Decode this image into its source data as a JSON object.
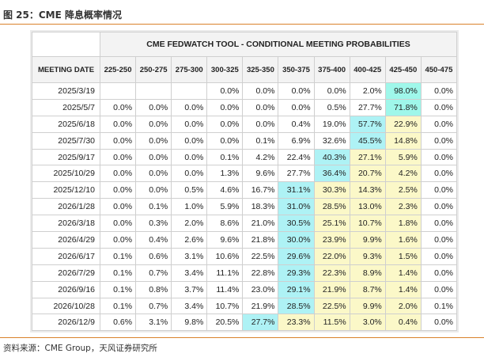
{
  "figure": {
    "title": "图 25：CME 降息概率情况",
    "source": "资料来源：CME Group，天风证券研究所"
  },
  "table": {
    "banner": "CME FEDWATCH TOOL - CONDITIONAL MEETING PROBABILITIES",
    "headers": [
      "MEETING DATE",
      "225-250",
      "250-275",
      "275-300",
      "300-325",
      "325-350",
      "350-375",
      "375-400",
      "400-425",
      "425-450",
      "450-475"
    ],
    "rows": [
      {
        "date": "2025/3/19",
        "values": [
          "",
          "",
          "",
          "0.0%",
          "0.0%",
          "0.0%",
          "0.0%",
          "2.0%",
          "98.0%",
          "0.0%"
        ],
        "hl": {
          "8": "cur"
        }
      },
      {
        "date": "2025/5/7",
        "values": [
          "0.0%",
          "0.0%",
          "0.0%",
          "0.0%",
          "0.0%",
          "0.0%",
          "0.5%",
          "27.7%",
          "71.8%",
          "0.0%"
        ],
        "hl": {
          "8": "cur"
        }
      },
      {
        "date": "2025/6/18",
        "values": [
          "0.0%",
          "0.0%",
          "0.0%",
          "0.0%",
          "0.0%",
          "0.4%",
          "19.0%",
          "57.7%",
          "22.9%",
          "0.0%"
        ],
        "hl": {
          "7": "max",
          "8": "yel"
        }
      },
      {
        "date": "2025/7/30",
        "values": [
          "0.0%",
          "0.0%",
          "0.0%",
          "0.0%",
          "0.1%",
          "6.9%",
          "32.6%",
          "45.5%",
          "14.8%",
          "0.0%"
        ],
        "hl": {
          "7": "max",
          "8": "yel"
        }
      },
      {
        "date": "2025/9/17",
        "values": [
          "0.0%",
          "0.0%",
          "0.0%",
          "0.1%",
          "4.2%",
          "22.4%",
          "40.3%",
          "27.1%",
          "5.9%",
          "0.0%"
        ],
        "hl": {
          "6": "max",
          "7": "yel",
          "8": "yel"
        }
      },
      {
        "date": "2025/10/29",
        "values": [
          "0.0%",
          "0.0%",
          "0.0%",
          "1.3%",
          "9.6%",
          "27.7%",
          "36.4%",
          "20.7%",
          "4.2%",
          "0.0%"
        ],
        "hl": {
          "6": "max",
          "7": "yel",
          "8": "yel"
        }
      },
      {
        "date": "2025/12/10",
        "values": [
          "0.0%",
          "0.0%",
          "0.5%",
          "4.6%",
          "16.7%",
          "31.1%",
          "30.3%",
          "14.3%",
          "2.5%",
          "0.0%"
        ],
        "hl": {
          "5": "max",
          "6": "yel",
          "7": "yel",
          "8": "yel"
        }
      },
      {
        "date": "2026/1/28",
        "values": [
          "0.0%",
          "0.1%",
          "1.0%",
          "5.9%",
          "18.3%",
          "31.0%",
          "28.5%",
          "13.0%",
          "2.3%",
          "0.0%"
        ],
        "hl": {
          "5": "max",
          "6": "yel",
          "7": "yel",
          "8": "yel"
        }
      },
      {
        "date": "2026/3/18",
        "values": [
          "0.0%",
          "0.3%",
          "2.0%",
          "8.6%",
          "21.0%",
          "30.5%",
          "25.1%",
          "10.7%",
          "1.8%",
          "0.0%"
        ],
        "hl": {
          "5": "max",
          "6": "yel",
          "7": "yel",
          "8": "yel"
        }
      },
      {
        "date": "2026/4/29",
        "values": [
          "0.0%",
          "0.4%",
          "2.6%",
          "9.6%",
          "21.8%",
          "30.0%",
          "23.9%",
          "9.9%",
          "1.6%",
          "0.0%"
        ],
        "hl": {
          "5": "max",
          "6": "yel",
          "7": "yel",
          "8": "yel"
        }
      },
      {
        "date": "2026/6/17",
        "values": [
          "0.1%",
          "0.6%",
          "3.1%",
          "10.6%",
          "22.5%",
          "29.6%",
          "22.0%",
          "9.3%",
          "1.5%",
          "0.0%"
        ],
        "hl": {
          "5": "max",
          "6": "yel",
          "7": "yel",
          "8": "yel"
        }
      },
      {
        "date": "2026/7/29",
        "values": [
          "0.1%",
          "0.7%",
          "3.4%",
          "11.1%",
          "22.8%",
          "29.3%",
          "22.3%",
          "8.9%",
          "1.4%",
          "0.0%"
        ],
        "hl": {
          "5": "max",
          "6": "yel",
          "7": "yel",
          "8": "yel"
        }
      },
      {
        "date": "2026/9/16",
        "values": [
          "0.1%",
          "0.8%",
          "3.7%",
          "11.4%",
          "23.0%",
          "29.1%",
          "21.9%",
          "8.7%",
          "1.4%",
          "0.0%"
        ],
        "hl": {
          "5": "max",
          "6": "yel",
          "7": "yel",
          "8": "yel"
        }
      },
      {
        "date": "2026/10/28",
        "values": [
          "0.1%",
          "0.7%",
          "3.4%",
          "10.7%",
          "21.9%",
          "28.5%",
          "22.5%",
          "9.9%",
          "2.0%",
          "0.1%"
        ],
        "hl": {
          "5": "max",
          "6": "yel",
          "7": "yel",
          "8": "yel"
        }
      },
      {
        "date": "2026/12/9",
        "values": [
          "0.6%",
          "3.1%",
          "9.8%",
          "20.5%",
          "27.7%",
          "23.3%",
          "11.5%",
          "3.0%",
          "0.4%",
          "0.0%"
        ],
        "hl": {
          "4": "max",
          "5": "yel",
          "6": "yel",
          "7": "yel",
          "8": "yel"
        }
      }
    ]
  },
  "colors": {
    "accent_rule": "#d9822b",
    "highlight_cyan": "#aef2f5",
    "highlight_yellow": "#fbf8c8"
  }
}
